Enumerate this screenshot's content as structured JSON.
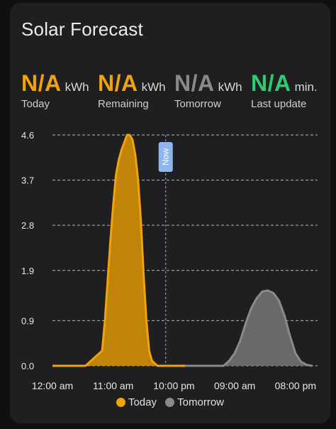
{
  "card": {
    "title": "Solar Forecast"
  },
  "stats": [
    {
      "value": "N/A",
      "unit": "kWh",
      "label": "Today",
      "color": "#f0a30a"
    },
    {
      "value": "N/A",
      "unit": "kWh",
      "label": "Remaining",
      "color": "#f0a30a"
    },
    {
      "value": "N/A",
      "unit": "kWh",
      "label": "Tomorrow",
      "color": "#8a8a8a"
    },
    {
      "value": "N/A",
      "unit": "min.",
      "label": "Last update",
      "color": "#2ecc71"
    }
  ],
  "chart_data": {
    "type": "area",
    "ylim": [
      0,
      4.6
    ],
    "y_ticks": [
      "0.0",
      "0.9",
      "1.9",
      "2.8",
      "3.7",
      "4.6"
    ],
    "y_tick_values": [
      0,
      0.9,
      1.9,
      2.8,
      3.7,
      4.6
    ],
    "xlim": [
      0,
      48
    ],
    "x_tick_labels": [
      "12:00 am",
      "11:00 am",
      "10:00 pm",
      "09:00 am",
      "08:00 pm"
    ],
    "x_tick_values": [
      0,
      11,
      22,
      33,
      44
    ],
    "now": {
      "x": 20.5,
      "label": "Now"
    },
    "grid": true,
    "legend_position": "bottom",
    "series": [
      {
        "name": "Today",
        "color": "#f0a30a",
        "x": [
          0,
          6,
          7,
          8,
          9,
          9.5,
          10,
          10.5,
          11,
          11.5,
          12,
          12.5,
          13,
          13.5,
          14,
          14.5,
          15,
          15.5,
          16,
          16.5,
          17,
          17.5,
          18,
          18.5,
          19,
          19.5,
          20,
          24
        ],
        "y": [
          0,
          0,
          0.1,
          0.2,
          0.3,
          0.9,
          1.7,
          2.5,
          3.2,
          3.8,
          4.1,
          4.3,
          4.45,
          4.6,
          4.6,
          4.5,
          4.2,
          3.7,
          2.9,
          1.8,
          0.9,
          0.3,
          0.1,
          0.05,
          0,
          0,
          0,
          0
        ]
      },
      {
        "name": "Tomorrow",
        "color": "#8a8a8a",
        "x": [
          24,
          31,
          32,
          33,
          34,
          35,
          36,
          37,
          38,
          39,
          40,
          41,
          42,
          43,
          44,
          45,
          46,
          47
        ],
        "y": [
          0,
          0,
          0.1,
          0.25,
          0.5,
          0.85,
          1.15,
          1.35,
          1.48,
          1.5,
          1.45,
          1.3,
          1.0,
          0.6,
          0.25,
          0.08,
          0.02,
          0
        ]
      }
    ]
  }
}
